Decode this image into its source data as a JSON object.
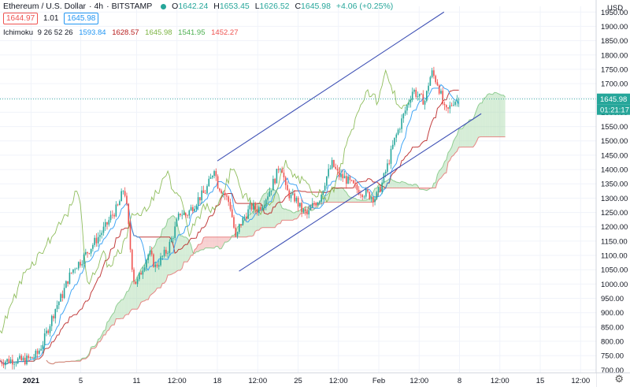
{
  "header": {
    "title": "Ethereum / U.S. Dollar",
    "interval": "4h",
    "exchange": "BITSTAMP",
    "o_label": "O",
    "o": "1642.24",
    "h_label": "H",
    "h": "1653.45",
    "l_label": "L",
    "l": "1626.52",
    "c_label": "C",
    "c": "1645.98",
    "change": "+4.06 (+0.25%)"
  },
  "quotes": {
    "bid": "1644.97",
    "spread": "1.01",
    "ask": "1645.98"
  },
  "indicator": {
    "name": "Ichimoku",
    "params": "9 26 52 26",
    "v1": "1593.84",
    "v2": "1628.57",
    "v3": "1645.98",
    "v4": "1541.95",
    "v5": "1452.27"
  },
  "colors": {
    "up": "#26a69a",
    "down": "#ef5350",
    "channel": "#3f51b5",
    "conversion": "#2196f3",
    "base": "#b71c1c",
    "lagging": "#7cb342",
    "cloud_up": "#a5d6a7",
    "cloud_down": "#ef9a9a"
  },
  "chart_data": {
    "type": "candlestick",
    "currency_label": "USD",
    "last_price_label": "1645.98",
    "countdown": "01:21:17",
    "y_ticks": [
      "1950.00",
      "1900.00",
      "1850.00",
      "1800.00",
      "1750.00",
      "1700.00",
      "1650.00",
      "1600.00",
      "1550.00",
      "1500.00",
      "1450.00",
      "1400.00",
      "1350.00",
      "1300.00",
      "1250.00",
      "1200.00",
      "1150.00",
      "1100.00",
      "1050.00",
      "1000.00",
      "950.00",
      "900.00",
      "850.00",
      "800.00",
      "750.00",
      "700.00"
    ],
    "y_values": [
      1950,
      1900,
      1850,
      1800,
      1750,
      1700,
      1650,
      1600,
      1550,
      1500,
      1450,
      1400,
      1350,
      1300,
      1250,
      1200,
      1150,
      1100,
      1050,
      1000,
      950,
      900,
      850,
      800,
      750,
      700
    ],
    "ylim": [
      690,
      1970
    ],
    "x_ticks": [
      "2021",
      "5",
      "11",
      "12:00",
      "18",
      "12:00",
      "25",
      "12:00",
      "Feb",
      "12:00",
      "8",
      "12:00",
      "15",
      "12:00"
    ],
    "x_tick_pos": [
      0,
      32,
      68,
      94,
      120,
      146,
      172,
      198,
      224,
      250,
      276,
      302,
      328,
      354
    ],
    "xlim": [
      -20,
      364
    ],
    "price_series": [
      [
        -20,
        730
      ],
      [
        -12,
        735
      ],
      [
        -6,
        732
      ],
      [
        0,
        740
      ],
      [
        4,
        755
      ],
      [
        8,
        800
      ],
      [
        12,
        860
      ],
      [
        16,
        920
      ],
      [
        20,
        960
      ],
      [
        24,
        1020
      ],
      [
        28,
        1060
      ],
      [
        32,
        1080
      ],
      [
        36,
        1110
      ],
      [
        40,
        1140
      ],
      [
        44,
        1170
      ],
      [
        48,
        1200
      ],
      [
        52,
        1240
      ],
      [
        56,
        1270
      ],
      [
        60,
        1340
      ],
      [
        62,
        1250
      ],
      [
        64,
        1120
      ],
      [
        66,
        1020
      ],
      [
        68,
        1000
      ],
      [
        72,
        1060
      ],
      [
        76,
        1110
      ],
      [
        80,
        1060
      ],
      [
        84,
        1090
      ],
      [
        88,
        1120
      ],
      [
        92,
        1180
      ],
      [
        96,
        1250
      ],
      [
        100,
        1240
      ],
      [
        104,
        1270
      ],
      [
        108,
        1300
      ],
      [
        112,
        1320
      ],
      [
        116,
        1370
      ],
      [
        118,
        1410
      ],
      [
        120,
        1350
      ],
      [
        124,
        1320
      ],
      [
        128,
        1280
      ],
      [
        130,
        1220
      ],
      [
        132,
        1150
      ],
      [
        134,
        1200
      ],
      [
        138,
        1240
      ],
      [
        142,
        1270
      ],
      [
        146,
        1260
      ],
      [
        150,
        1290
      ],
      [
        154,
        1330
      ],
      [
        158,
        1380
      ],
      [
        160,
        1420
      ],
      [
        162,
        1400
      ],
      [
        164,
        1330
      ],
      [
        168,
        1300
      ],
      [
        170,
        1300
      ],
      [
        174,
        1260
      ],
      [
        178,
        1240
      ],
      [
        182,
        1280
      ],
      [
        186,
        1300
      ],
      [
        190,
        1370
      ],
      [
        194,
        1420
      ],
      [
        198,
        1380
      ],
      [
        202,
        1370
      ],
      [
        206,
        1350
      ],
      [
        210,
        1330
      ],
      [
        214,
        1320
      ],
      [
        218,
        1310
      ],
      [
        222,
        1300
      ],
      [
        226,
        1350
      ],
      [
        230,
        1420
      ],
      [
        234,
        1500
      ],
      [
        238,
        1560
      ],
      [
        242,
        1620
      ],
      [
        246,
        1680
      ],
      [
        250,
        1650
      ],
      [
        254,
        1640
      ],
      [
        256,
        1700
      ],
      [
        258,
        1740
      ],
      [
        260,
        1720
      ],
      [
        262,
        1700
      ],
      [
        264,
        1660
      ],
      [
        266,
        1610
      ],
      [
        268,
        1600
      ],
      [
        270,
        1620
      ],
      [
        272,
        1640
      ],
      [
        276,
        1646
      ]
    ],
    "channel_upper": [
      [
        120,
        1430
      ],
      [
        266,
        1950
      ]
    ],
    "channel_lower": [
      [
        134,
        1045
      ],
      [
        290,
        1595
      ]
    ]
  }
}
